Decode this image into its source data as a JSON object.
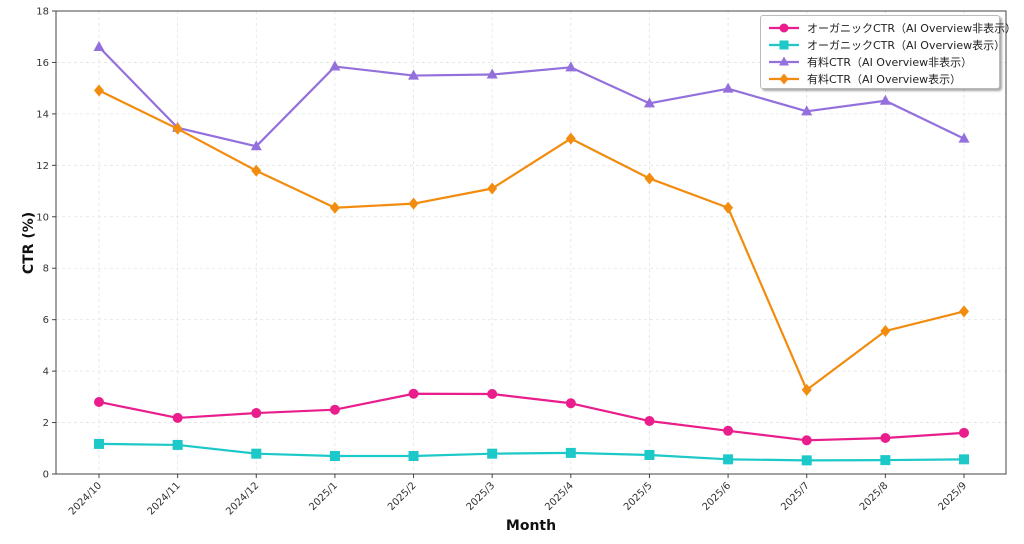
{
  "chart_data": {
    "type": "line",
    "title": "",
    "xlabel": "Month",
    "ylabel": "CTR (%)",
    "ylim": [
      0,
      18
    ],
    "yticks": [
      "0",
      "2",
      "4",
      "6",
      "8",
      "10",
      "12",
      "14",
      "16",
      "18"
    ],
    "grid": true,
    "legend_position": "top-right",
    "categories": [
      "2024/10",
      "2024/11",
      "2024/12",
      "2025/1",
      "2025/2",
      "2025/3",
      "2025/4",
      "2025/5",
      "2025/6",
      "2025/7",
      "2025/8",
      "2025/9"
    ],
    "series": [
      {
        "name": "オーガニックCTR（AI Overview非表示）",
        "color": "#e91e8c",
        "marker": "circle",
        "values": [
          2.8,
          2.18,
          2.37,
          2.5,
          3.12,
          3.11,
          2.75,
          2.06,
          1.68,
          1.31,
          1.4,
          1.6
        ]
      },
      {
        "name": "オーガニックCTR（AI Overview表示）",
        "color": "#1cc8c8",
        "marker": "square",
        "values": [
          1.17,
          1.13,
          0.79,
          0.7,
          0.7,
          0.79,
          0.82,
          0.74,
          0.57,
          0.53,
          0.54,
          0.57
        ]
      },
      {
        "name": "有料CTR（AI Overview非表示）",
        "color": "#9370db",
        "marker": "triangle",
        "values": [
          16.6,
          13.46,
          12.74,
          15.84,
          15.49,
          15.53,
          15.81,
          14.41,
          14.98,
          14.1,
          14.51,
          13.04
        ]
      },
      {
        "name": "有料CTR（AI Overview表示）",
        "color": "#f28c0f",
        "marker": "diamond",
        "values": [
          14.91,
          13.42,
          11.79,
          10.35,
          10.51,
          11.1,
          13.04,
          11.49,
          10.35,
          3.27,
          5.56,
          6.32
        ]
      }
    ]
  }
}
